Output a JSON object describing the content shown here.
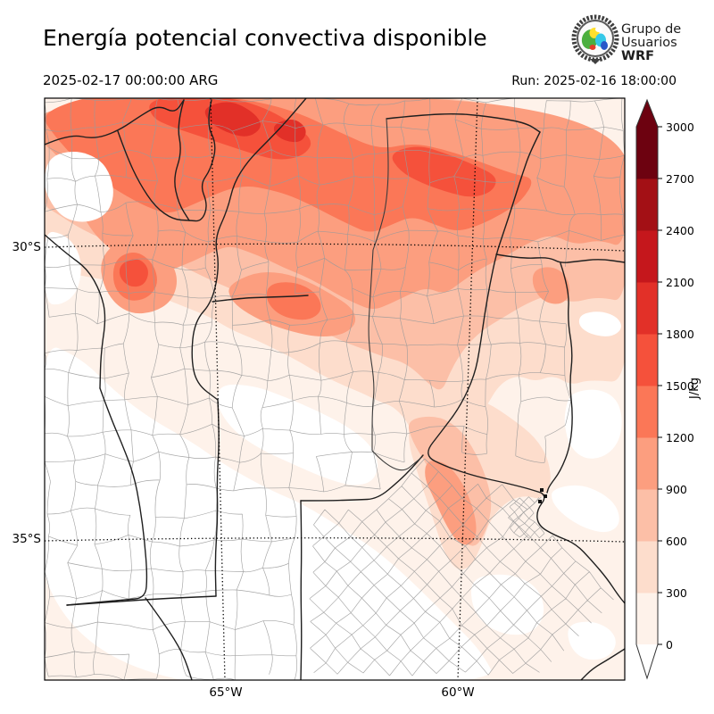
{
  "header": {
    "title": "Energía potencial convectiva disponible",
    "valid_time": "2025-02-17 00:00:00 ARG",
    "run": "Run: 2025-02-16 18:00:00"
  },
  "logo": {
    "line1": "Grupo de",
    "line2": "Usuarios",
    "line3": "WRF"
  },
  "map": {
    "lat_ticks": [
      {
        "label": "30°S"
      },
      {
        "label": "35°S"
      }
    ],
    "lon_ticks": [
      {
        "label": "65°W"
      },
      {
        "label": "60°W"
      }
    ]
  },
  "colorbar": {
    "unit": "J/kg",
    "tick_labels": [
      "0",
      "300",
      "600",
      "900",
      "1200",
      "1500",
      "1800",
      "2100",
      "2400",
      "2700",
      "3000"
    ],
    "segment_colors_low_to_high": [
      "#fef2ea",
      "#fdddcc",
      "#fcbfa7",
      "#fc9e7f",
      "#fb7757",
      "#f5513b",
      "#e23028",
      "#c5171c",
      "#a31015",
      "#6d0210"
    ]
  },
  "chart_data": {
    "type": "heatmap",
    "title": "Energía potencial convectiva disponible",
    "units": "J/kg",
    "levels": [
      0,
      300,
      600,
      900,
      1200,
      1500,
      1800,
      2100,
      2400,
      2700,
      3000
    ],
    "graticule": {
      "lat": [
        "30°S",
        "35°S"
      ],
      "lon": [
        "65°W",
        "60°W"
      ]
    },
    "summary": "CAPE field over central-northern Argentina; maximum band 1500-2100 J/kg across the north, near zero in the southwest"
  }
}
